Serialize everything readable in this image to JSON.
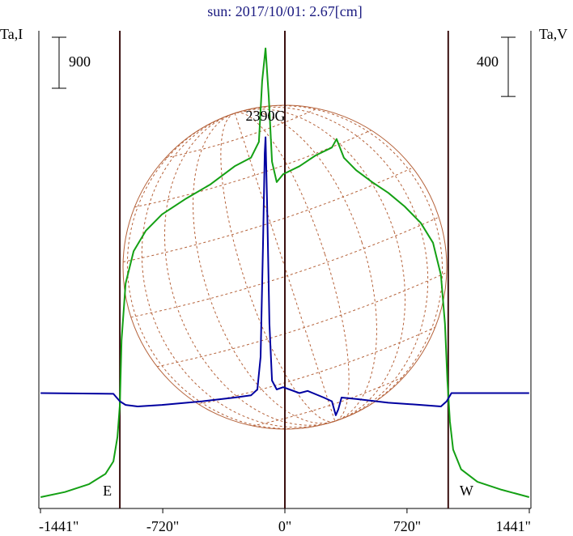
{
  "chart_data": {
    "type": "line",
    "title": "sun: 2017/10/01: 2.67[cm]",
    "y_label": "Ta,I",
    "y2_label": "Ta,V",
    "xlim": [
      -1441,
      1441
    ],
    "xticks": [
      {
        "value": -1441,
        "label": "-1441\""
      },
      {
        "value": -720,
        "label": "-720\""
      },
      {
        "value": 0,
        "label": "0\""
      },
      {
        "value": 720,
        "label": "720\""
      },
      {
        "value": 1441,
        "label": "1441\""
      }
    ],
    "ylim": [
      0,
      8430
    ],
    "y2lim": [
      -780,
      2450
    ],
    "scale_bars": [
      {
        "axis": "y",
        "value": 900,
        "label": "900"
      },
      {
        "axis": "y2",
        "value": 400,
        "label": "400"
      }
    ],
    "limb_lines": [
      {
        "x": -973,
        "label": "E"
      },
      {
        "x": 0
      },
      {
        "x": 963,
        "label": "W"
      }
    ],
    "annotation": "2390G",
    "series": [
      {
        "name": "Ta,I",
        "color": "#14a014",
        "x": [
          -1440,
          -1297,
          -1154,
          -1058,
          -1011,
          -987,
          -973,
          -963,
          -939,
          -892,
          -820,
          -725,
          -582,
          -439,
          -296,
          -200,
          -153,
          -134,
          -114,
          -95,
          -76,
          -48,
          -10,
          86,
          181,
          277,
          305,
          348,
          420,
          515,
          610,
          706,
          801,
          873,
          920,
          944,
          958,
          973,
          992,
          1039,
          1135,
          1278,
          1440
        ],
        "values": [
          200,
          290,
          430,
          610,
          830,
          1260,
          1830,
          2970,
          3970,
          4540,
          4900,
          5190,
          5470,
          5720,
          6040,
          6190,
          6470,
          7540,
          8120,
          7260,
          6120,
          5760,
          5900,
          6040,
          6230,
          6370,
          6520,
          6190,
          5970,
          5760,
          5570,
          5330,
          5040,
          4690,
          4120,
          3260,
          2260,
          1540,
          1040,
          690,
          470,
          330,
          200
        ]
      },
      {
        "name": "Ta,V",
        "color": "#0000a0",
        "axis": "y2",
        "x": [
          -1440,
          -1011,
          -973,
          -939,
          -868,
          -725,
          -486,
          -296,
          -200,
          -162,
          -143,
          -129,
          -119,
          -114,
          -105,
          -91,
          -76,
          -48,
          -10,
          86,
          134,
          229,
          277,
          300,
          315,
          334,
          420,
          610,
          801,
          920,
          954,
          982,
          1440
        ],
        "values": [
          0,
          -5,
          -55,
          -80,
          -90,
          -80,
          -55,
          -30,
          -15,
          25,
          245,
          1010,
          1620,
          1730,
          1290,
          470,
          85,
          25,
          40,
          0,
          15,
          -30,
          -55,
          -150,
          -110,
          -30,
          -40,
          -65,
          -80,
          -90,
          -55,
          0,
          0
        ]
      }
    ]
  }
}
